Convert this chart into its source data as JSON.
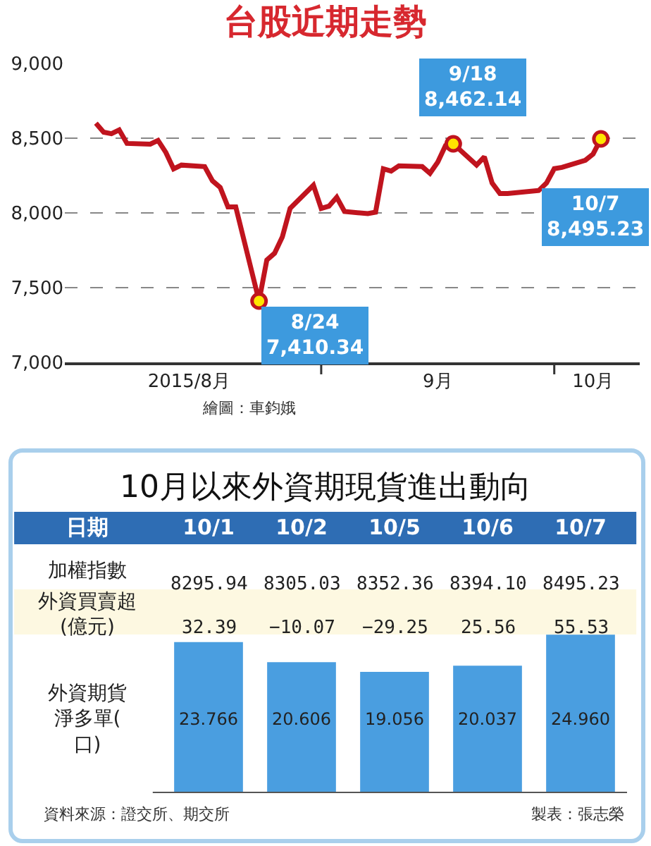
{
  "chart_data": [
    {
      "type": "line",
      "title": "台股近期走勢",
      "color": "#c0141e",
      "marker": "none",
      "line_style": "solid",
      "grid": "y",
      "x": [
        "2015-08-03",
        "2015-08-04",
        "2015-08-05",
        "2015-08-06",
        "2015-08-07",
        "2015-08-10",
        "2015-08-11",
        "2015-08-12",
        "2015-08-13",
        "2015-08-14",
        "2015-08-17",
        "2015-08-18",
        "2015-08-19",
        "2015-08-20",
        "2015-08-21",
        "2015-08-24",
        "2015-08-25",
        "2015-08-26",
        "2015-08-27",
        "2015-08-28",
        "2015-08-31",
        "2015-09-01",
        "2015-09-02",
        "2015-09-03",
        "2015-09-04",
        "2015-09-07",
        "2015-09-08",
        "2015-09-09",
        "2015-09-10",
        "2015-09-11",
        "2015-09-14",
        "2015-09-15",
        "2015-09-16",
        "2015-09-17",
        "2015-09-18",
        "2015-09-21",
        "2015-09-22",
        "2015-09-23",
        "2015-09-24",
        "2015-09-25",
        "2015-09-29",
        "2015-09-30",
        "2015-10-01",
        "2015-10-02",
        "2015-10-05",
        "2015-10-06",
        "2015-10-07"
      ],
      "values": [
        8600,
        8540,
        8530,
        8555,
        8465,
        8460,
        8485,
        8405,
        8295,
        8320,
        8310,
        8215,
        8170,
        8040,
        8040,
        7410.34,
        7685,
        7730,
        7840,
        8030,
        8185,
        8030,
        8045,
        8105,
        8010,
        7995,
        8005,
        8295,
        8280,
        8315,
        8310,
        8265,
        8340,
        8450,
        8462.14,
        8320,
        8375,
        8200,
        8130,
        8130,
        8150,
        8200,
        8295.94,
        8305.03,
        8352.36,
        8394.1,
        8495.23
      ],
      "xlim": [
        "2015-07-30",
        "2015-10-12"
      ],
      "xticks": [
        {
          "value": "2015-08-15",
          "label": "2015/8月"
        },
        {
          "value": "2015-09-01",
          "label": null
        },
        {
          "value": "2015-09-16",
          "label": "9月"
        },
        {
          "value": "2015-10-01",
          "label": null
        },
        {
          "value": "2015-10-06",
          "label": "10月"
        }
      ],
      "ylim": [
        7000,
        9000
      ],
      "yticks": [
        {
          "value": 7000,
          "label": "7,000"
        },
        {
          "value": 7500,
          "label": "7,500"
        },
        {
          "value": 8000,
          "label": "8,000"
        },
        {
          "value": 8500,
          "label": "8,500"
        },
        {
          "value": 9000,
          "label": "9,000"
        }
      ],
      "annotations": [
        {
          "text": "8/24\n7,410.34",
          "x": "2015-08-24",
          "y": 7410.34
        },
        {
          "text": "9/18\n8,462.14",
          "x": "2015-09-18",
          "y": 8462.14
        },
        {
          "text": "10/7\n8,495.23",
          "x": "2015-10-07",
          "y": 8495.23
        },
        "繪圖：車鈞娥"
      ]
    },
    {
      "type": "bar",
      "title": "10月以來外資期現貨進出動向",
      "color": "#4a9ee0",
      "tick_labels": "x",
      "ylabel": "外資期貨淨多單(口)",
      "categories": [
        "10/1",
        "10/2",
        "10/5",
        "10/6",
        "10/7"
      ],
      "values": [
        23.766,
        20.606,
        19.056,
        20.037,
        24.96
      ],
      "value_labels": [
        "23.766",
        "20.606",
        "19.056",
        "20.037",
        "24.960"
      ],
      "annotations": [
        "日期",
        "加權指數",
        "8295.94",
        "8305.03",
        "8352.36",
        "8394.10",
        "8495.23",
        "外資買賣超(億元)",
        "32.39",
        "−10.07",
        "−29.25",
        "25.56",
        "55.53",
        "資料來源：證交所、期交所",
        "製表：張志榮"
      ]
    }
  ]
}
